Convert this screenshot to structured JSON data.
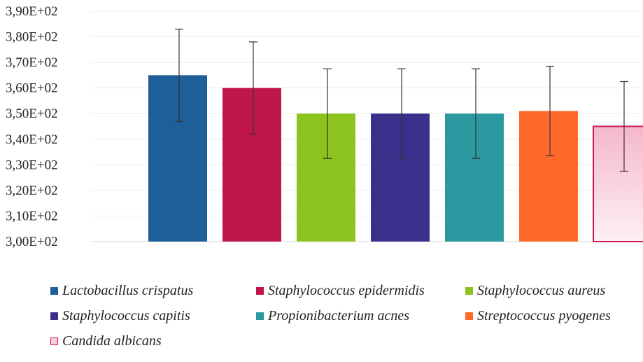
{
  "chart_data": {
    "type": "bar",
    "categories": [
      "Lactobacillus crispatus",
      "Staphylococcus epidermidis",
      "Staphylococcus aureus",
      "Staphylococcus capitis",
      "Propionibacterium acnes",
      "Streptococcus pyogenes",
      "Candida albicans"
    ],
    "values": [
      365,
      360,
      350,
      350,
      350,
      351,
      345
    ],
    "error": [
      18,
      18,
      17.5,
      17.5,
      17.5,
      17.5,
      17.5
    ],
    "colors": [
      "#1f5f99",
      "#c0174a",
      "#8dc31e",
      "#3b2f8c",
      "#2a9aa0",
      "#ff6a2b",
      "#f7cdd9"
    ],
    "borders": [
      "#1f5f99",
      "#c0174a",
      "#8dc31e",
      "#3b2f8c",
      "#2a9aa0",
      "#ff6a2b",
      "#c8185a"
    ],
    "ylim": [
      300,
      390
    ],
    "yticks": [
      300,
      310,
      320,
      330,
      340,
      350,
      360,
      370,
      380,
      390
    ],
    "ytick_labels": [
      "3,00E+02",
      "3,10E+02",
      "3,20E+02",
      "3,30E+02",
      "3,40E+02",
      "3,50E+02",
      "3,60E+02",
      "3,70E+02",
      "3,80E+02",
      "3,90E+02"
    ],
    "grid": true,
    "legend_position": "bottom",
    "title": "",
    "xlabel": "",
    "ylabel": ""
  }
}
